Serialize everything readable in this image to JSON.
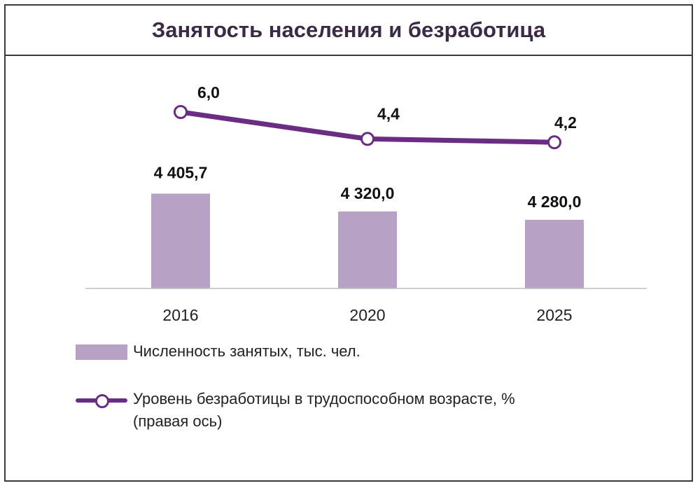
{
  "title": "Занятость населения и безработица",
  "chart_data": {
    "type": "bar",
    "categories": [
      "2016",
      "2020",
      "2025"
    ],
    "series": [
      {
        "name": "Численность занятых, тыс. чел.",
        "type": "bar",
        "values": [
          4405.7,
          4320.0,
          4280.0
        ],
        "labels": [
          "4 405,7",
          "4 320,0",
          "4 280,0"
        ],
        "color": "#b7a2c6",
        "axis": "left"
      },
      {
        "name": "Уровень безработицы в трудоспособном возрасте, % (правая ось)",
        "type": "line",
        "values": [
          6.0,
          4.4,
          4.2
        ],
        "labels": [
          "6,0",
          "4,4",
          "4,2"
        ],
        "color": "#6b2d83",
        "axis": "right"
      }
    ],
    "ylim_left": [
      3950,
      5000
    ],
    "ylim_right": [
      -4.5,
      8.5
    ],
    "legend_position": "bottom"
  },
  "legend": {
    "bar_label": "Численность занятых, тыс. чел.",
    "line_label_1": "Уровень безработицы в трудоспособном возрасте, %",
    "line_label_2": "(правая ось)"
  }
}
